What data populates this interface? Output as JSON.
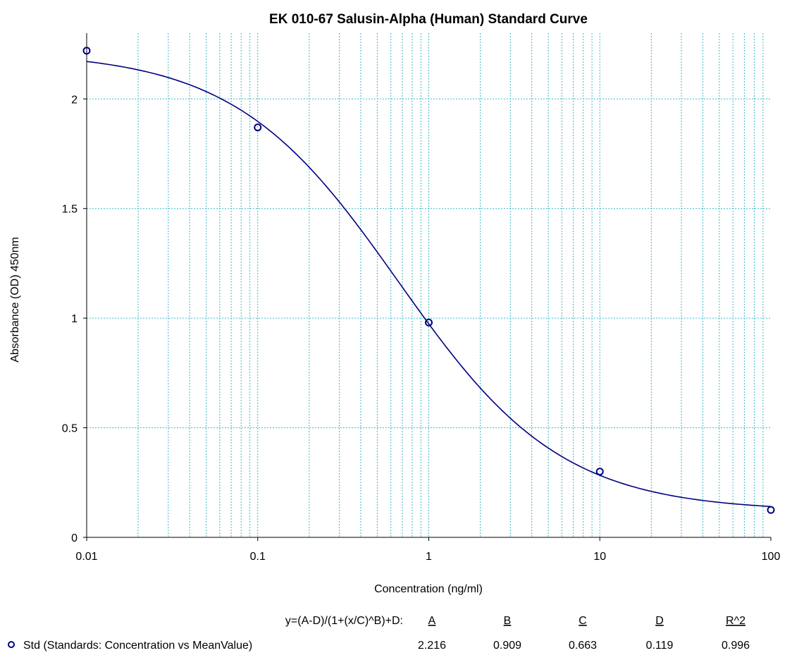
{
  "chart_data": {
    "type": "scatter",
    "title": "EK 010-67 Salusin-Alpha (Human) Standard Curve",
    "xlabel": "Concentration (ng/ml)",
    "ylabel": "Absorbance (OD) 450nm",
    "xscale": "log",
    "xlim": [
      0.01,
      100
    ],
    "ylim": [
      0,
      2.3
    ],
    "x_ticks": [
      0.01,
      0.1,
      1,
      10,
      100
    ],
    "x_tick_labels": [
      "0.01",
      "0.1",
      "1",
      "10",
      "100"
    ],
    "y_ticks": [
      0,
      0.5,
      1,
      1.5,
      2
    ],
    "y_tick_labels": [
      "0",
      "0.5",
      "1",
      "1.5",
      "2"
    ],
    "grid": true,
    "colors": {
      "series": "#000080",
      "grid": "#3fb8c8",
      "axis": "#000000"
    },
    "series": [
      {
        "name": "Std (Standards: Concentration vs MeanValue)",
        "marker": "circle",
        "x": [
          0.01,
          0.1,
          1,
          10,
          100
        ],
        "y": [
          2.22,
          1.87,
          0.98,
          0.3,
          0.125
        ]
      }
    ],
    "fit": {
      "equation": "y=(A-D)/(1+(x/C)^B)+D:",
      "param_names": [
        "A",
        "B",
        "C",
        "D",
        "R^2"
      ],
      "param_values": [
        "2.216",
        "0.909",
        "0.663",
        "0.119",
        "0.996"
      ],
      "A": 2.216,
      "B": 0.909,
      "C": 0.663,
      "D": 0.119
    }
  }
}
